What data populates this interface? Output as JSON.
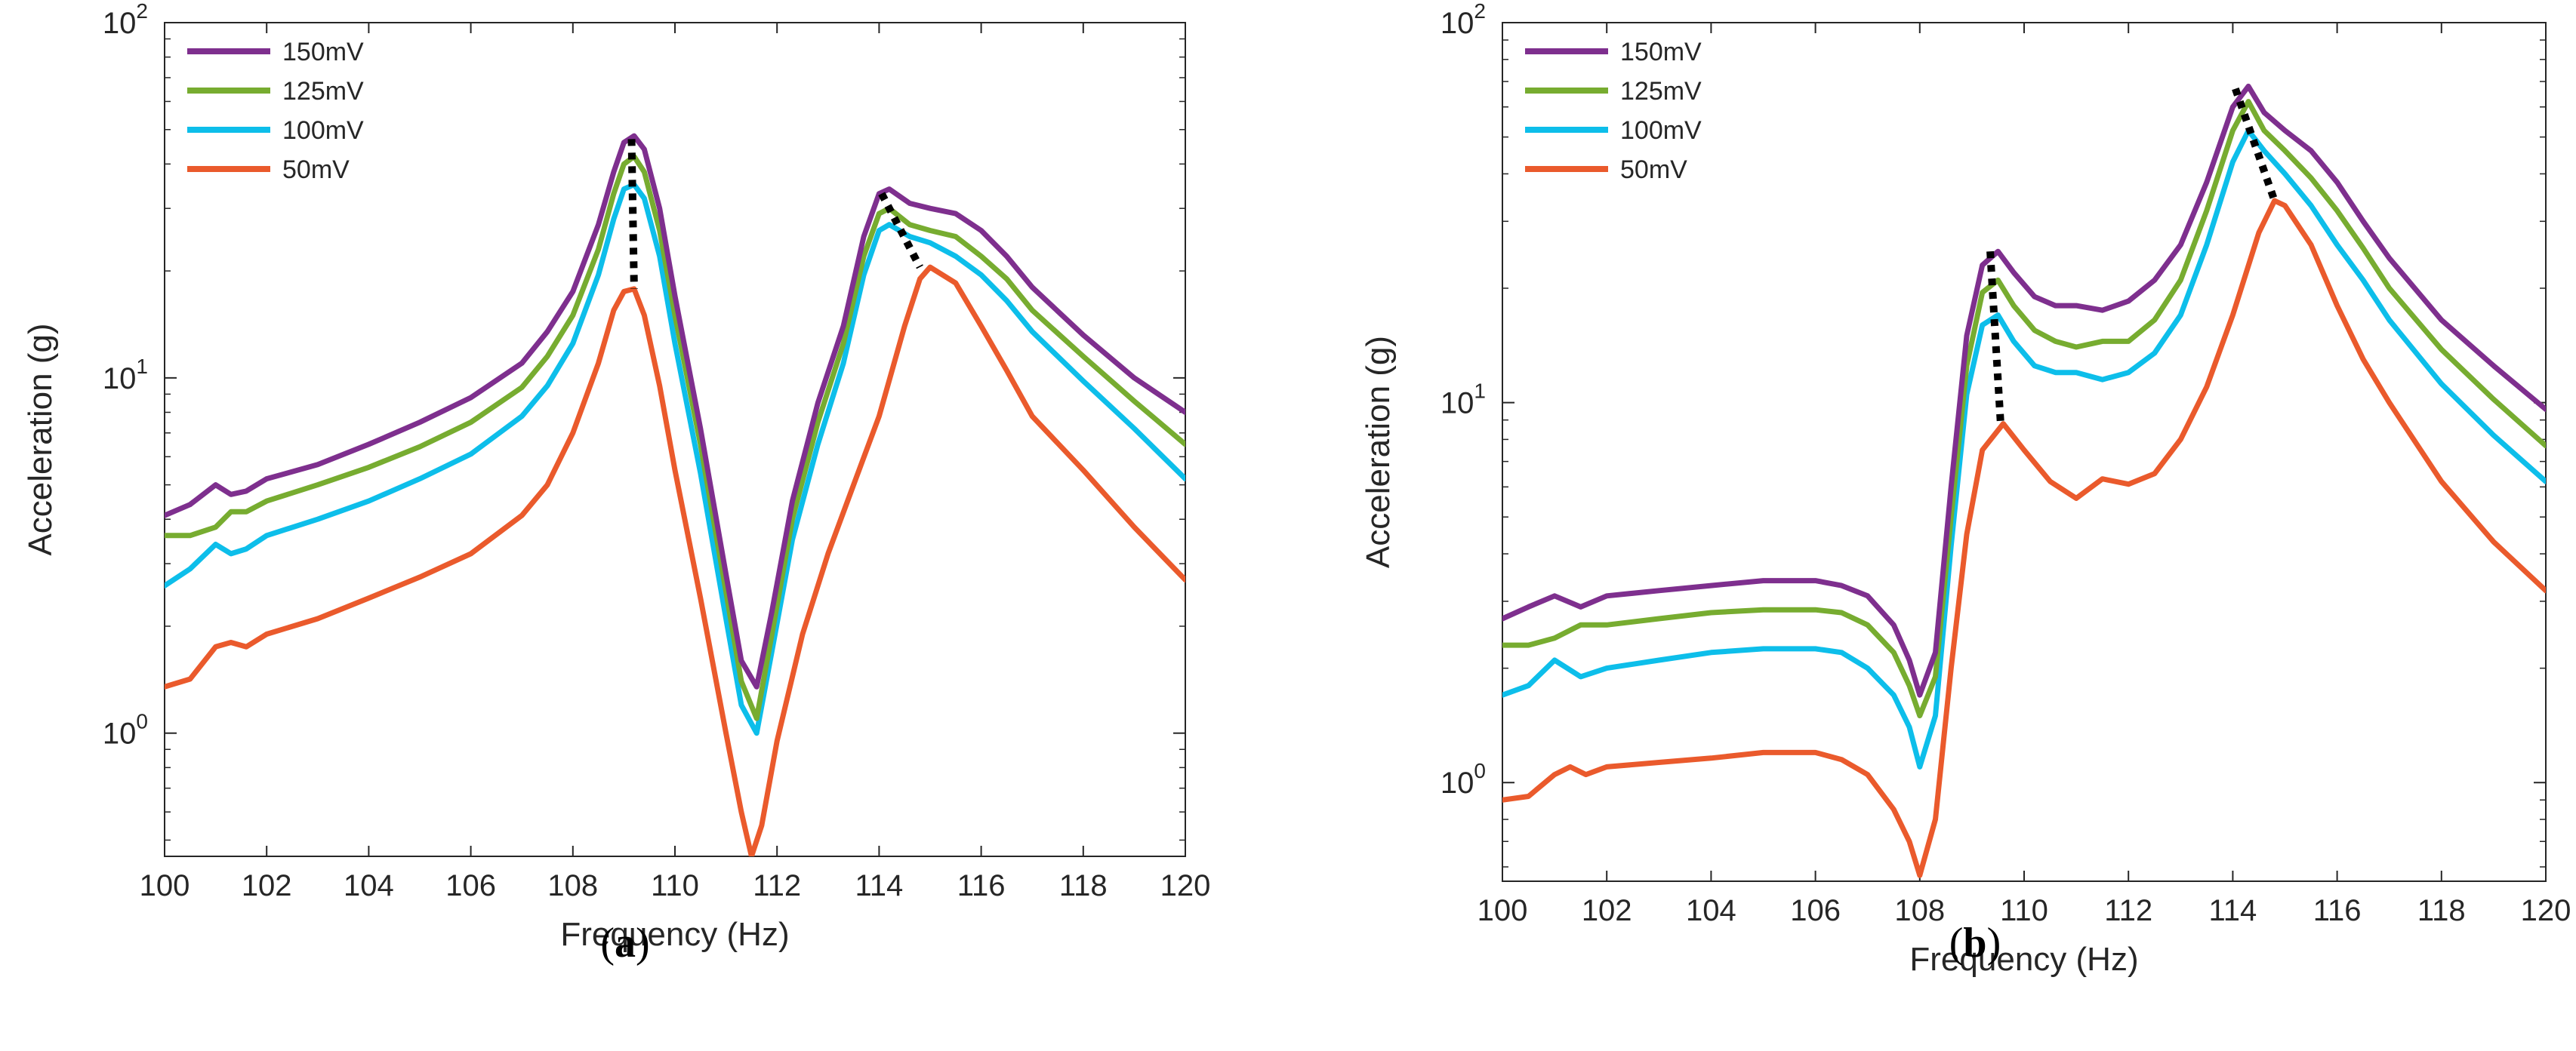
{
  "figure": {
    "panels": [
      {
        "caption_open": "(",
        "caption_letter": "a",
        "caption_close": ")",
        "y_tick_labels": [
          {
            "base": "10",
            "exp": "0",
            "value": 1
          },
          {
            "base": "10",
            "exp": "1",
            "value": 10
          },
          {
            "base": "10",
            "exp": "2",
            "value": 100
          }
        ]
      },
      {
        "caption_open": "(",
        "caption_letter": "b",
        "caption_close": ")",
        "y_tick_labels": [
          {
            "base": "10",
            "exp": "0",
            "value": 1
          },
          {
            "base": "10",
            "exp": "1",
            "value": 10
          },
          {
            "base": "10",
            "exp": "2",
            "value": 100
          }
        ]
      }
    ]
  },
  "chart_data": [
    {
      "type": "line",
      "panel": "a",
      "title": "",
      "xlabel": "Frequency (Hz)",
      "ylabel": "Acceleration (g)",
      "xlim": [
        100,
        120
      ],
      "ylim": [
        0.45,
        100
      ],
      "yscale": "log",
      "xticks": [
        100,
        102,
        104,
        106,
        108,
        110,
        112,
        114,
        116,
        118,
        120
      ],
      "legend_position": "top-left",
      "series": [
        {
          "name": "150mV",
          "color": "#7E2F8E",
          "x": [
            100,
            100.5,
            101,
            101.3,
            101.6,
            102,
            103,
            104,
            105,
            106,
            107,
            107.5,
            108,
            108.5,
            108.8,
            109,
            109.2,
            109.4,
            109.7,
            110,
            110.5,
            111,
            111.3,
            111.6,
            111.9,
            112.3,
            112.8,
            113.3,
            113.7,
            114,
            114.2,
            114.6,
            115,
            115.5,
            116,
            116.5,
            117,
            118,
            119,
            120
          ],
          "y": [
            4.1,
            4.4,
            5.0,
            4.7,
            4.8,
            5.2,
            5.7,
            6.5,
            7.5,
            8.8,
            11,
            13.5,
            17.5,
            27,
            38,
            46,
            48,
            44,
            30,
            17,
            7.2,
            2.8,
            1.6,
            1.35,
            2.2,
            4.5,
            8.5,
            14,
            25,
            33,
            34,
            31,
            30,
            29,
            26,
            22,
            18,
            13.2,
            10,
            8.0
          ]
        },
        {
          "name": "125mV",
          "color": "#77AC30",
          "x": [
            100,
            100.5,
            101,
            101.3,
            101.6,
            102,
            103,
            104,
            105,
            106,
            107,
            107.5,
            108,
            108.5,
            108.8,
            109,
            109.2,
            109.4,
            109.7,
            110,
            110.5,
            111,
            111.3,
            111.6,
            111.9,
            112.3,
            112.8,
            113.3,
            113.7,
            114,
            114.2,
            114.6,
            115,
            115.5,
            116,
            116.5,
            117,
            118,
            119,
            120
          ],
          "y": [
            3.6,
            3.6,
            3.8,
            4.2,
            4.2,
            4.5,
            5.0,
            5.6,
            6.4,
            7.5,
            9.4,
            11.5,
            15,
            23,
            33,
            40,
            42,
            38,
            26,
            15,
            6.5,
            2.5,
            1.4,
            1.1,
            1.9,
            4.0,
            7.5,
            12.5,
            22,
            29,
            30,
            27,
            26,
            25,
            22,
            19,
            15.5,
            11.5,
            8.6,
            6.5
          ]
        },
        {
          "name": "100mV",
          "color": "#0DBEEA",
          "x": [
            100,
            100.5,
            101,
            101.3,
            101.6,
            102,
            103,
            104,
            105,
            106,
            107,
            107.5,
            108,
            108.5,
            108.8,
            109,
            109.2,
            109.4,
            109.7,
            110,
            110.5,
            111,
            111.3,
            111.6,
            111.9,
            112.3,
            112.8,
            113.3,
            113.7,
            114,
            114.2,
            114.6,
            115,
            115.5,
            116,
            116.5,
            117,
            118,
            119,
            120
          ],
          "y": [
            2.6,
            2.9,
            3.4,
            3.2,
            3.3,
            3.6,
            4.0,
            4.5,
            5.2,
            6.1,
            7.8,
            9.5,
            12.5,
            19.5,
            28,
            34,
            35,
            32,
            22,
            12.5,
            5.4,
            2.1,
            1.2,
            1.0,
            1.7,
            3.5,
            6.5,
            11,
            19.5,
            26,
            27,
            25,
            24,
            22,
            19.5,
            16.5,
            13.5,
            9.8,
            7.2,
            5.2
          ]
        },
        {
          "name": "50mV",
          "color": "#EA5A2C",
          "x": [
            100,
            100.5,
            101,
            101.3,
            101.6,
            102,
            103,
            104,
            105,
            106,
            107,
            107.5,
            108,
            108.5,
            108.8,
            109,
            109.2,
            109.4,
            109.7,
            110,
            110.5,
            111,
            111.3,
            111.5,
            111.7,
            112,
            112.5,
            113,
            113.5,
            114,
            114.5,
            114.8,
            115,
            115.5,
            116,
            116.5,
            117,
            118,
            119,
            120
          ],
          "y": [
            1.35,
            1.42,
            1.75,
            1.8,
            1.75,
            1.9,
            2.1,
            2.4,
            2.75,
            3.2,
            4.1,
            5.0,
            7.0,
            11,
            15.5,
            17.5,
            17.8,
            15,
            9.5,
            5.5,
            2.4,
            1.0,
            0.6,
            0.45,
            0.55,
            0.95,
            1.9,
            3.2,
            5.0,
            7.8,
            14,
            19,
            20.5,
            18.5,
            14,
            10.5,
            7.8,
            5.5,
            3.8,
            2.7
          ]
        }
      ],
      "annotations": [
        {
          "type": "dotted-line",
          "color": "#000000",
          "x": [
            109.15,
            109.2
          ],
          "y": [
            47.0,
            17.8
          ]
        },
        {
          "type": "dotted-line",
          "color": "#000000",
          "x": [
            114.05,
            114.8
          ],
          "y": [
            33.0,
            20.5
          ]
        }
      ]
    },
    {
      "type": "line",
      "panel": "b",
      "title": "",
      "xlabel": "Frequency (Hz)",
      "ylabel": "Acceleration (g)",
      "xlim": [
        100,
        120
      ],
      "ylim": [
        0.55,
        100
      ],
      "yscale": "log",
      "xticks": [
        100,
        102,
        104,
        106,
        108,
        110,
        112,
        114,
        116,
        118,
        120
      ],
      "legend_position": "top-left",
      "series": [
        {
          "name": "150mV",
          "color": "#7E2F8E",
          "x": [
            100,
            100.5,
            101,
            101.5,
            102,
            103,
            104,
            105,
            106,
            106.5,
            107,
            107.5,
            107.8,
            108,
            108.3,
            108.6,
            108.9,
            109.2,
            109.5,
            109.8,
            110.2,
            110.6,
            111,
            111.5,
            112,
            112.5,
            113,
            113.5,
            114,
            114.3,
            114.6,
            115,
            115.5,
            116,
            116.5,
            117,
            118,
            119,
            120
          ],
          "y": [
            2.7,
            2.9,
            3.1,
            2.9,
            3.1,
            3.2,
            3.3,
            3.4,
            3.4,
            3.3,
            3.1,
            2.6,
            2.1,
            1.7,
            2.2,
            6.0,
            15,
            23,
            25,
            22,
            19,
            18,
            18,
            17.5,
            18.5,
            21,
            26,
            38,
            60,
            68,
            58,
            52,
            46,
            38,
            30,
            24,
            16.5,
            12.5,
            9.6
          ]
        },
        {
          "name": "125mV",
          "color": "#77AC30",
          "x": [
            100,
            100.5,
            101,
            101.5,
            102,
            103,
            104,
            105,
            106,
            106.5,
            107,
            107.5,
            107.8,
            108,
            108.3,
            108.6,
            108.9,
            109.2,
            109.5,
            109.8,
            110.2,
            110.6,
            111,
            111.5,
            112,
            112.5,
            113,
            113.5,
            114,
            114.3,
            114.6,
            115,
            115.5,
            116,
            116.5,
            117,
            118,
            119,
            120
          ],
          "y": [
            2.3,
            2.3,
            2.4,
            2.6,
            2.6,
            2.7,
            2.8,
            2.85,
            2.85,
            2.8,
            2.6,
            2.2,
            1.8,
            1.5,
            1.9,
            5.0,
            12.5,
            19.5,
            21,
            18,
            15.5,
            14.5,
            14,
            14.5,
            14.5,
            16.5,
            21,
            32,
            52,
            62,
            52,
            46,
            39,
            32,
            25.5,
            20,
            13.8,
            10.2,
            7.7
          ]
        },
        {
          "name": "100mV",
          "color": "#0DBEEA",
          "x": [
            100,
            100.5,
            101,
            101.5,
            102,
            103,
            104,
            105,
            106,
            106.5,
            107,
            107.5,
            107.8,
            108,
            108.3,
            108.6,
            108.9,
            109.2,
            109.5,
            109.8,
            110.2,
            110.6,
            111,
            111.5,
            112,
            112.5,
            113,
            113.5,
            114,
            114.3,
            114.6,
            115,
            115.5,
            116,
            116.5,
            117,
            118,
            119,
            120
          ],
          "y": [
            1.7,
            1.8,
            2.1,
            1.9,
            2.0,
            2.1,
            2.2,
            2.25,
            2.25,
            2.2,
            2.0,
            1.7,
            1.4,
            1.1,
            1.5,
            4.2,
            10.5,
            16,
            17,
            14.5,
            12.5,
            12,
            12,
            11.5,
            12,
            13.5,
            17,
            26,
            43,
            52,
            46,
            40,
            33,
            26,
            21,
            16.5,
            11.2,
            8.2,
            6.2
          ]
        },
        {
          "name": "50mV",
          "color": "#EA5A2C",
          "x": [
            100,
            100.5,
            101,
            101.3,
            101.6,
            102,
            103,
            104,
            105,
            106,
            106.5,
            107,
            107.5,
            107.8,
            108,
            108.3,
            108.6,
            108.9,
            109.2,
            109.6,
            110,
            110.5,
            111,
            111.5,
            112,
            112.5,
            113,
            113.5,
            114,
            114.5,
            114.8,
            115,
            115.5,
            116,
            116.5,
            117,
            118,
            119,
            120
          ],
          "y": [
            0.9,
            0.92,
            1.05,
            1.1,
            1.05,
            1.1,
            1.13,
            1.16,
            1.2,
            1.2,
            1.15,
            1.05,
            0.85,
            0.7,
            0.57,
            0.8,
            2.0,
            4.5,
            7.5,
            8.8,
            7.5,
            6.2,
            5.6,
            6.3,
            6.1,
            6.5,
            8.0,
            11,
            17,
            28,
            34,
            33,
            26,
            18,
            13,
            10,
            6.2,
            4.3,
            3.2
          ]
        }
      ],
      "annotations": [
        {
          "type": "dotted-line",
          "color": "#000000",
          "x": [
            109.35,
            109.55
          ],
          "y": [
            25.0,
            8.8
          ]
        },
        {
          "type": "dotted-line",
          "color": "#000000",
          "x": [
            114.05,
            114.8
          ],
          "y": [
            67.0,
            34.0
          ]
        }
      ]
    }
  ]
}
